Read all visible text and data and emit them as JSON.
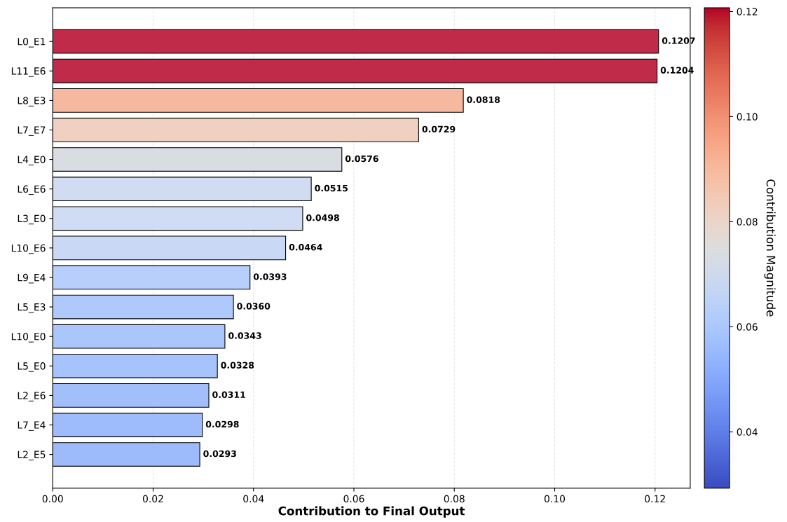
{
  "chart_data": {
    "type": "bar",
    "orientation": "horizontal",
    "xlabel": "Contribution to Final Output",
    "clabel": "Contribution Magnitude",
    "categories": [
      "L0_E1",
      "L11_E6",
      "L8_E3",
      "L7_E7",
      "L4_E0",
      "L6_E6",
      "L3_E0",
      "L10_E6",
      "L9_E4",
      "L5_E3",
      "L10_E0",
      "L5_E0",
      "L2_E6",
      "L7_E4",
      "L2_E5"
    ],
    "values": [
      0.1207,
      0.1204,
      0.0818,
      0.0729,
      0.0576,
      0.0515,
      0.0498,
      0.0464,
      0.0393,
      0.036,
      0.0343,
      0.0328,
      0.0311,
      0.0298,
      0.0293
    ],
    "value_labels": [
      "0.1207",
      "0.1204",
      "0.0818",
      "0.0729",
      "0.0576",
      "0.0515",
      "0.0498",
      "0.0464",
      "0.0393",
      "0.0360",
      "0.0343",
      "0.0328",
      "0.0311",
      "0.0298",
      "0.0293"
    ],
    "colors": [
      "#c12b4a",
      "#c12b4a",
      "#f6b89e",
      "#f0d1c1",
      "#d9dce3",
      "#d1dbf1",
      "#cfdcf3",
      "#c9d9f5",
      "#b8cffc",
      "#b0c9fd",
      "#abc6fd",
      "#a7c3fd",
      "#a2bffc",
      "#9ebcfb",
      "#9dbbfb"
    ],
    "xlim": [
      0,
      0.127
    ],
    "xticks": [
      {
        "value": 0,
        "label": "0.00"
      },
      {
        "value": 0.02,
        "label": "0.02"
      },
      {
        "value": 0.04,
        "label": "0.04"
      },
      {
        "value": 0.06,
        "label": "0.06"
      },
      {
        "value": 0.08,
        "label": "0.08"
      },
      {
        "value": 0.1,
        "label": "0.10"
      },
      {
        "value": 0.12,
        "label": "0.12"
      }
    ],
    "clim": [
      0.0293,
      0.1207
    ],
    "cticks": [
      {
        "value": 0.04,
        "label": "0.04"
      },
      {
        "value": 0.06,
        "label": "0.06"
      },
      {
        "value": 0.08,
        "label": "0.08"
      },
      {
        "value": 0.1,
        "label": "0.10"
      },
      {
        "value": 0.12,
        "label": "0.12"
      }
    ],
    "grid": "x",
    "legend": false
  }
}
